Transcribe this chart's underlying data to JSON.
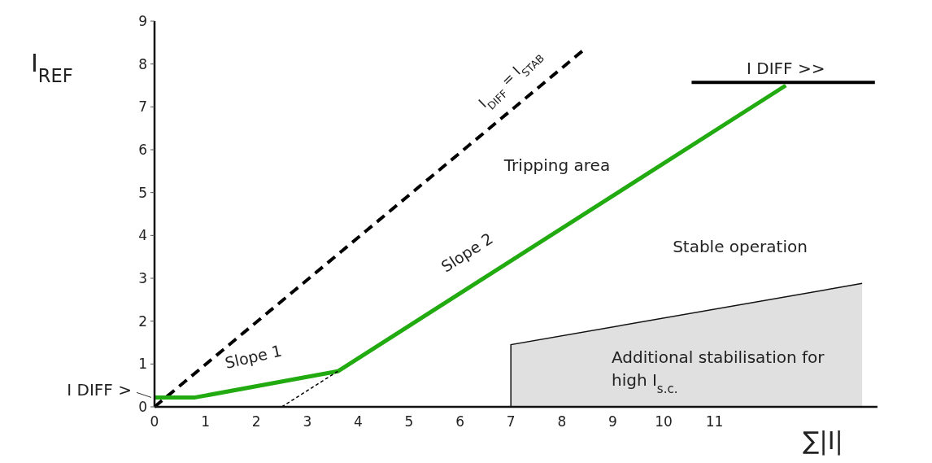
{
  "chart_data": {
    "type": "line",
    "xlabel": "∑|I|",
    "ylabel": "I$_{REF}$",
    "xlim": [
      0,
      14.2
    ],
    "ylim": [
      0,
      9
    ],
    "xticks": [
      0,
      1,
      2,
      3,
      4,
      5,
      6,
      7,
      8,
      9,
      10,
      11
    ],
    "yticks": [
      0,
      1,
      2,
      3,
      4,
      5,
      6,
      7,
      8,
      9
    ],
    "grid": false,
    "marker": "none",
    "series": [
      {
        "type": "area",
        "color": "#e0e0e0",
        "x": [
          7,
          13.9
        ],
        "values": [
          1.45,
          2.88
        ]
      },
      {
        "color": "#000000",
        "line_style": "dashed",
        "x": [
          0,
          8.4
        ],
        "values": [
          0,
          8.3
        ]
      },
      {
        "color": "#000000",
        "line_style": "solid",
        "x": [
          10.55,
          14.15
        ],
        "values": [
          7.57,
          7.57
        ]
      },
      {
        "color": "#22aa11",
        "line_style": "solid",
        "x": [
          0,
          0.8,
          3.6,
          12.4
        ],
        "values": [
          0.22,
          0.22,
          0.83,
          7.5
        ]
      },
      {
        "color": "#000000",
        "line_style": "dotted",
        "x": [
          2.5,
          3.6
        ],
        "values": [
          0,
          0.83
        ]
      }
    ],
    "annotations": [
      {
        "text": "I DIFF >",
        "x": 0,
        "y": 0.22
      },
      {
        "text": "I DIFF >>",
        "x": 12.4,
        "y": 7.57
      },
      "I$_{DIFF}$ = I$_{STAB}$",
      "Slope 1",
      "Slope 2",
      "Tripping area",
      "Stable operation",
      "Additional stabilisation for high I$_{s.c.}$"
    ]
  }
}
